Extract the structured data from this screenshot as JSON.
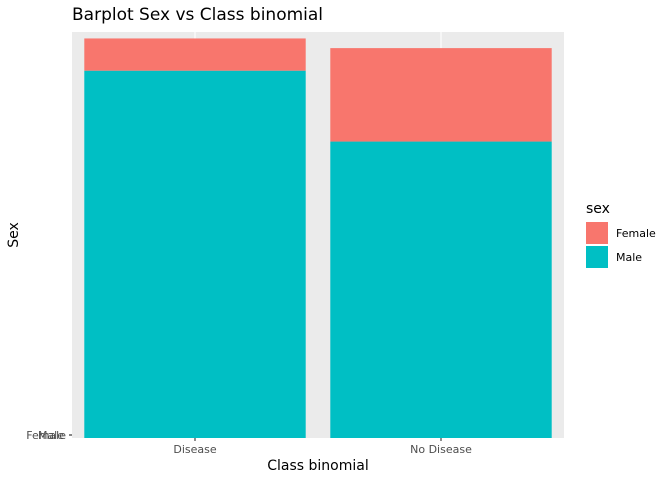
{
  "chart_data": {
    "type": "bar",
    "stacked": true,
    "title": "Barplot Sex vs Class binomial",
    "xlabel": "Class binomial",
    "ylabel": "Sex",
    "categories": [
      "Disease",
      "No Disease"
    ],
    "y_tick_labels": [
      "Female",
      "Male"
    ],
    "legend": {
      "title": "sex",
      "position": "right",
      "items": [
        {
          "label": "Female",
          "color": "#F8766D"
        },
        {
          "label": "Male",
          "color": "#00BFC4"
        }
      ]
    },
    "series": [
      {
        "name": "Male",
        "color": "#00BFC4",
        "values": [
          114,
          92
        ]
      },
      {
        "name": "Female",
        "color": "#F8766D",
        "values": [
          10,
          29
        ]
      }
    ],
    "ylim": [
      0,
      126
    ],
    "grid": true
  }
}
